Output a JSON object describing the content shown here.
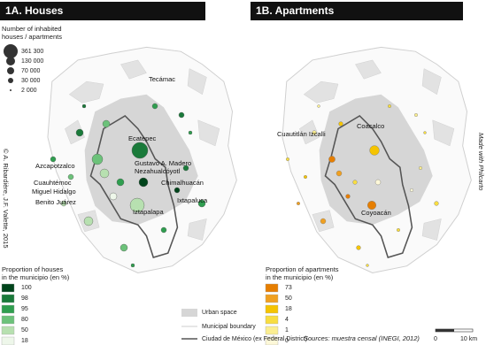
{
  "panels": [
    {
      "title": "1A. Houses"
    },
    {
      "title": "1B. Apartments"
    }
  ],
  "size_legend": {
    "title_lines": [
      "Number of inhabited",
      "houses / apartments"
    ],
    "items": [
      "361 300",
      "130 000",
      "70 000",
      "30 000",
      "2 000"
    ]
  },
  "labels_houses": [
    "Tecámac",
    "Ecatepec",
    "Azcapotzalco",
    "Gustavo A. Madero",
    "Nezahualcóyotl",
    "Chimalhuacán",
    "Cuauhtémoc",
    "Miguel Hidalgo",
    "Benito Juárez",
    "Ixtapaluca",
    "Iztapalapa"
  ],
  "labels_apartments": [
    "Cuautitlán Izcalli",
    "Coacalco",
    "Coyoacán"
  ],
  "legend_houses": {
    "title_lines": [
      "Proportion of houses",
      "in the municipio (en %)"
    ],
    "classes": [
      100,
      98,
      95,
      80,
      50,
      18
    ]
  },
  "legend_apartments": {
    "title_lines": [
      "Proportion of apartments",
      "in the municipio (en %)"
    ],
    "classes": [
      73,
      50,
      18,
      4,
      1,
      0
    ]
  },
  "legend_base": {
    "items": [
      "Urban space",
      "Municipal boundary",
      "Ciudad de México (ex Federal District)"
    ]
  },
  "credits": {
    "left": "© A. Ribardière, J.F. Valette, 2015",
    "right": "Made with Philcarto",
    "sources": "Sources: muestra censal (INEGI, 2012)"
  },
  "scale": {
    "start": "0",
    "end": "10 km"
  }
}
